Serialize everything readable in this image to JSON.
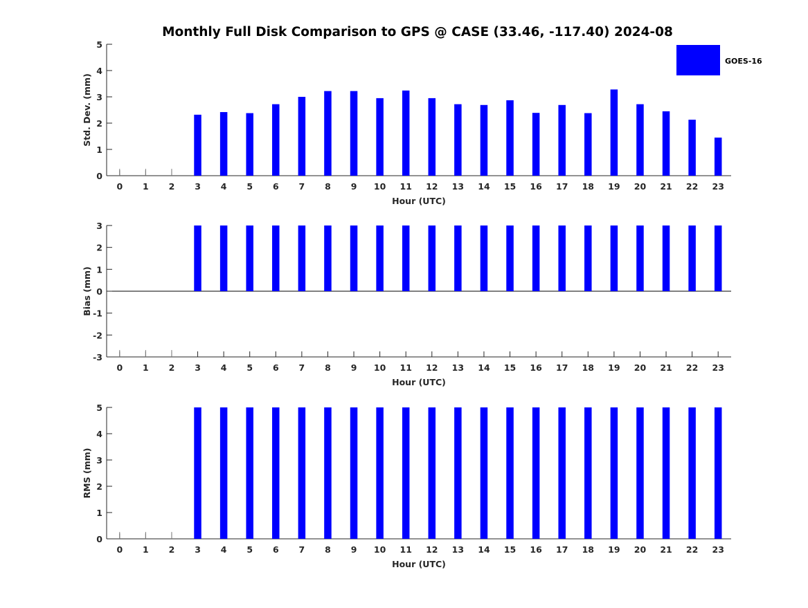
{
  "chart_data": {
    "type": "bar",
    "title": "Monthly Full Disk Comparison to GPS @ CASE (33.46, -117.40) 2024-08",
    "legend": {
      "label": "GOES-16",
      "placement": "top-right"
    },
    "colors": {
      "bar": "#0000ff",
      "axis": "#262626",
      "baseline_tick": "#808080"
    },
    "categories": [
      "0",
      "1",
      "2",
      "3",
      "4",
      "5",
      "6",
      "7",
      "8",
      "9",
      "10",
      "11",
      "12",
      "13",
      "14",
      "15",
      "16",
      "17",
      "18",
      "19",
      "20",
      "21",
      "22",
      "23"
    ],
    "panels": [
      {
        "id": "std",
        "ylabel": "Std. Dev. (mm)",
        "xlabel": "Hour (UTC)",
        "ylim": [
          0,
          5
        ],
        "yticks": [
          0,
          1,
          2,
          3,
          4,
          5
        ],
        "values": [
          null,
          null,
          null,
          2.32,
          2.42,
          2.38,
          2.72,
          3.0,
          3.22,
          3.22,
          2.95,
          3.24,
          2.95,
          2.72,
          2.69,
          2.87,
          2.39,
          2.69,
          2.38,
          3.28,
          2.72,
          2.45,
          2.13,
          1.45
        ]
      },
      {
        "id": "bias",
        "ylabel": "Bias (mm)",
        "xlabel": "Hour (UTC)",
        "ylim": [
          -3,
          3
        ],
        "yticks": [
          -3,
          -2,
          -1,
          0,
          1,
          2,
          3
        ],
        "values": [
          null,
          null,
          null,
          3,
          3,
          3,
          3,
          3,
          3,
          3,
          3,
          3,
          3,
          3,
          3,
          3,
          3,
          3,
          3,
          3,
          3,
          3,
          3,
          3
        ]
      },
      {
        "id": "rms",
        "ylabel": "RMS (mm)",
        "xlabel": "Hour (UTC)",
        "ylim": [
          0,
          5
        ],
        "yticks": [
          0,
          1,
          2,
          3,
          4,
          5
        ],
        "values": [
          null,
          null,
          null,
          5,
          5,
          5,
          5,
          5,
          5,
          5,
          5,
          5,
          5,
          5,
          5,
          5,
          5,
          5,
          5,
          5,
          5,
          5,
          5,
          5
        ]
      }
    ]
  }
}
